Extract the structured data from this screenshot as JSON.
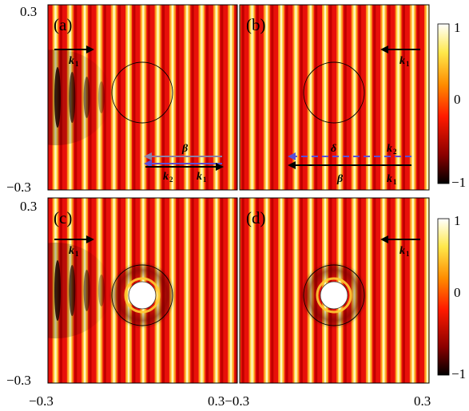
{
  "figure": {
    "panels": [
      {
        "label": "(a)",
        "kind": "incident-right",
        "obstacle": false,
        "attenuated": true,
        "vectors": [
          {
            "symbol": "k",
            "sub": "1",
            "dir": "right",
            "row": "top"
          },
          {
            "symbol": "β",
            "sub": "",
            "dir": "left",
            "row": "mid",
            "color": "#8c7fa6"
          },
          {
            "symbol": "k",
            "sub": "2",
            "dir": "left",
            "row": "low",
            "color": "#5a4fd8"
          },
          {
            "symbol": "k",
            "sub": "1",
            "dir": "right",
            "row": "low2"
          }
        ]
      },
      {
        "label": "(b)",
        "kind": "incident-left",
        "obstacle": false,
        "attenuated": false,
        "vectors": [
          {
            "symbol": "k",
            "sub": "1",
            "dir": "left",
            "row": "top"
          },
          {
            "symbol": "δ",
            "sub": "",
            "dir": "left-dashed",
            "row": "mid",
            "color": "#5a4fd8"
          },
          {
            "symbol": "k",
            "sub": "2",
            "dir": "left",
            "row": "mid"
          },
          {
            "symbol": "β",
            "sub": "",
            "dir": "left",
            "row": "low"
          },
          {
            "symbol": "k",
            "sub": "1",
            "dir": "left",
            "row": "low"
          }
        ]
      },
      {
        "label": "(c)",
        "kind": "incident-right",
        "obstacle": true,
        "attenuated": true,
        "vectors": [
          {
            "symbol": "k",
            "sub": "1",
            "dir": "right",
            "row": "top"
          }
        ]
      },
      {
        "label": "(d)",
        "kind": "incident-left",
        "obstacle": true,
        "attenuated": false,
        "vectors": [
          {
            "symbol": "k",
            "sub": "1",
            "dir": "left",
            "row": "top"
          }
        ]
      }
    ],
    "axes": {
      "y_top": "0.3",
      "y_bottom": "−0.3",
      "x_left": "−0.3",
      "x_right": "0.3",
      "x_left_joined": "0.3−0.3"
    },
    "colorbar": {
      "ticks": [
        "1",
        "0",
        "−1"
      ],
      "colors": [
        "#000000",
        "#8b0000",
        "#ff2200",
        "#ff8800",
        "#ffee44",
        "#ffffff"
      ]
    }
  }
}
